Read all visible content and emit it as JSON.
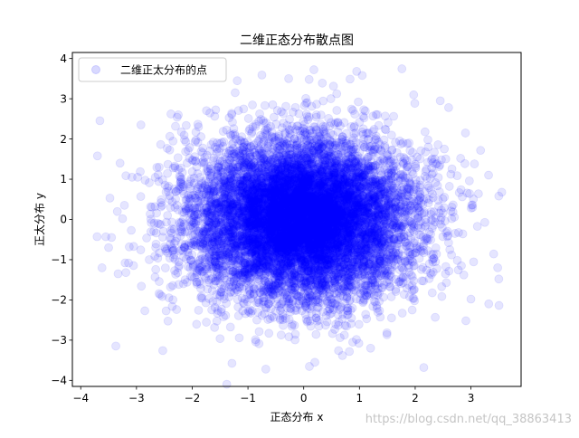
{
  "chart_data": {
    "type": "scatter",
    "title": "二维正态分布散点图",
    "xlabel": "正态分布 x",
    "ylabel": "正太分布 y",
    "xlim": [
      -4.15,
      3.9
    ],
    "ylim": [
      -4.15,
      4.15
    ],
    "xticks": [
      -4,
      -3,
      -2,
      -1,
      0,
      1,
      2,
      3
    ],
    "yticks": [
      -4,
      -3,
      -2,
      -1,
      0,
      1,
      2,
      3,
      4
    ],
    "grid": false,
    "legend_position": "top-left",
    "series": [
      {
        "name": "二维正太分布的点",
        "color": "#0000ff",
        "alpha": 0.1,
        "distribution": "standard-normal-2d",
        "point_count": 10000,
        "points": [
          [
            -3.7,
            1.58
          ],
          [
            -3.55,
            -0.43
          ],
          [
            -3.5,
            -0.7
          ],
          [
            -3.33,
            -1.35
          ],
          [
            -3.25,
            0.02
          ],
          [
            -3.08,
            1.05
          ],
          [
            -3.05,
            -0.67
          ],
          [
            -2.98,
            1.05
          ],
          [
            -2.92,
            2.35
          ],
          [
            -2.85,
            -2.27
          ],
          [
            -2.25,
            2.6
          ],
          [
            0.95,
            3.68
          ],
          [
            1.05,
            3.58
          ],
          [
            -0.75,
            3.59
          ],
          [
            -0.27,
            3.5
          ],
          [
            -0.68,
            -3.72
          ],
          [
            0.2,
            -3.55
          ],
          [
            0.88,
            -3.05
          ],
          [
            1.2,
            -3.2
          ],
          [
            3.5,
            0.58
          ],
          [
            3.48,
            -1.2
          ],
          [
            3.5,
            -1.48
          ],
          [
            3.0,
            -1.98
          ],
          [
            2.6,
            2.78
          ],
          [
            2.45,
            2.95
          ]
        ]
      }
    ]
  },
  "watermark": "https://blog.csdn.net/qq_38863413"
}
